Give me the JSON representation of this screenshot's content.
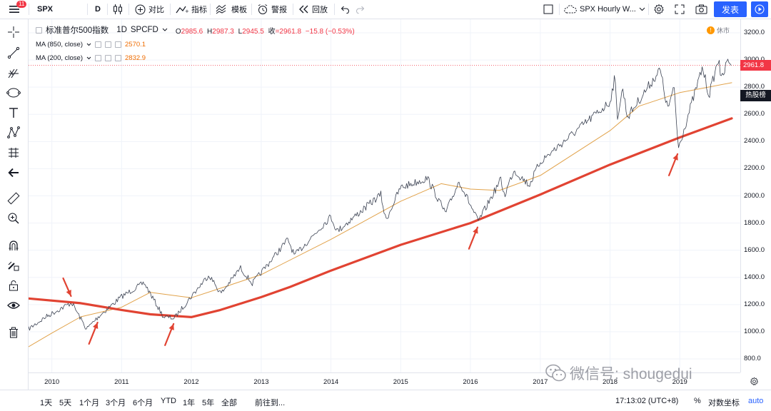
{
  "topbar": {
    "menu_badge": "11",
    "symbol": "SPX",
    "interval": "D",
    "compare_label": "对比",
    "indicators_label": "指标",
    "templates_label": "模板",
    "alert_label": "警报",
    "replay_label": "回放",
    "layout_name": "SPX Hourly W...",
    "publish_label": "发表"
  },
  "legend": {
    "title": "标准普尔500指数",
    "interval": "1D",
    "exchange": "SPCFD",
    "open_key": "O",
    "open": "2985.6",
    "high_key": "H",
    "high": "2987.3",
    "low_key": "L",
    "low": "2945.5",
    "close_key": "收",
    "close": "=2961.8",
    "change": "−15.8 (−0.53%)",
    "ma1_label": "MA (850, close)",
    "ma1_value": "2570.1",
    "ma2_label": "MA (200, close)",
    "ma2_value": "2832.9",
    "closed_icon": "!",
    "closed_text": "休市"
  },
  "price_axis": {
    "ticks": [
      "3200.0",
      "3000.0",
      "2800.0",
      "2600.0",
      "2400.0",
      "2200.0",
      "2000.0",
      "1800.0",
      "1600.0",
      "1400.0",
      "1200.0",
      "1000.0",
      "800.0"
    ],
    "last_price": "2961.8",
    "hot_label": "热股榜"
  },
  "time_axis": {
    "ticks": [
      "2010",
      "2011",
      "2012",
      "2013",
      "2014",
      "2015",
      "2016",
      "2017",
      "2018",
      "2019"
    ]
  },
  "bottombar": {
    "ranges": [
      "1天",
      "5天",
      "1个月",
      "3个月",
      "6个月",
      "YTD",
      "1年",
      "5年",
      "全部"
    ],
    "goto_label": "前往到...",
    "clock": "17:13:02 (UTC+8)",
    "percent_label": "%",
    "log_label": "对数坐标",
    "auto_label": "auto"
  },
  "watermark": {
    "text": "微信号: shougedui"
  },
  "colors": {
    "price_line": "#3c4353",
    "ma_850": "#e14332",
    "ma_200": "#e1a24a",
    "arrow": "#e14332",
    "accent": "#2962ff",
    "last_price": "#f23645"
  },
  "chart_data": {
    "type": "line",
    "ylim": [
      800,
      3200
    ],
    "x_range": [
      "2009-09-01",
      "2019-09-30"
    ],
    "series": [
      {
        "name": "SPX",
        "points": [
          [
            "2009-09-01",
            1020
          ],
          [
            "2009-12-01",
            1110
          ],
          [
            "2010-04-15",
            1215
          ],
          [
            "2010-07-01",
            1020
          ],
          [
            "2010-09-01",
            1110
          ],
          [
            "2010-12-31",
            1258
          ],
          [
            "2011-04-29",
            1360
          ],
          [
            "2011-08-08",
            1110
          ],
          [
            "2011-10-04",
            1100
          ],
          [
            "2011-12-31",
            1258
          ],
          [
            "2012-04-02",
            1420
          ],
          [
            "2012-06-04",
            1280
          ],
          [
            "2012-09-14",
            1470
          ],
          [
            "2012-11-15",
            1355
          ],
          [
            "2013-05-21",
            1680
          ],
          [
            "2013-06-24",
            1560
          ],
          [
            "2013-12-31",
            1848
          ],
          [
            "2014-02-03",
            1740
          ],
          [
            "2014-09-19",
            2010
          ],
          [
            "2014-10-15",
            1820
          ],
          [
            "2014-12-31",
            2060
          ],
          [
            "2015-05-21",
            2130
          ],
          [
            "2015-08-24",
            1870
          ],
          [
            "2015-11-03",
            2110
          ],
          [
            "2016-02-11",
            1810
          ],
          [
            "2016-06-08",
            2120
          ],
          [
            "2016-06-27",
            2000
          ],
          [
            "2016-08-15",
            2190
          ],
          [
            "2016-11-04",
            2080
          ],
          [
            "2016-12-31",
            2250
          ],
          [
            "2017-12-31",
            2690
          ],
          [
            "2018-01-26",
            2870
          ],
          [
            "2018-02-08",
            2580
          ],
          [
            "2018-03-09",
            2790
          ],
          [
            "2018-04-02",
            2580
          ],
          [
            "2018-09-20",
            2930
          ],
          [
            "2018-10-29",
            2640
          ],
          [
            "2018-12-03",
            2790
          ],
          [
            "2018-12-24",
            2350
          ],
          [
            "2019-04-30",
            2945
          ],
          [
            "2019-06-03",
            2740
          ],
          [
            "2019-07-26",
            3025
          ],
          [
            "2019-08-05",
            2840
          ],
          [
            "2019-09-12",
            3010
          ],
          [
            "2019-09-30",
            2961.8
          ]
        ]
      },
      {
        "name": "MA (850, close)",
        "points": [
          [
            "2009-09-01",
            1245
          ],
          [
            "2010-06-01",
            1210
          ],
          [
            "2011-01-01",
            1160
          ],
          [
            "2011-06-01",
            1128
          ],
          [
            "2012-01-01",
            1108
          ],
          [
            "2012-06-01",
            1160
          ],
          [
            "2013-01-01",
            1255
          ],
          [
            "2013-06-01",
            1330
          ],
          [
            "2014-01-01",
            1450
          ],
          [
            "2015-01-01",
            1640
          ],
          [
            "2016-01-01",
            1800
          ],
          [
            "2017-01-01",
            2010
          ],
          [
            "2018-01-01",
            2230
          ],
          [
            "2019-01-01",
            2430
          ],
          [
            "2019-09-30",
            2570.1
          ]
        ]
      },
      {
        "name": "MA (200, close)",
        "points": [
          [
            "2009-09-01",
            890
          ],
          [
            "2010-01-01",
            990
          ],
          [
            "2010-06-01",
            1110
          ],
          [
            "2011-01-01",
            1180
          ],
          [
            "2011-06-01",
            1290
          ],
          [
            "2012-01-01",
            1250
          ],
          [
            "2012-06-01",
            1320
          ],
          [
            "2013-01-01",
            1420
          ],
          [
            "2014-01-01",
            1680
          ],
          [
            "2015-01-01",
            1960
          ],
          [
            "2015-08-01",
            2090
          ],
          [
            "2016-01-01",
            2050
          ],
          [
            "2016-06-01",
            2040
          ],
          [
            "2017-01-01",
            2150
          ],
          [
            "2018-01-01",
            2480
          ],
          [
            "2018-06-01",
            2660
          ],
          [
            "2019-01-01",
            2760
          ],
          [
            "2019-09-30",
            2832.9
          ]
        ]
      }
    ],
    "annotations": [
      {
        "type": "arrow",
        "date": "2010-04-15",
        "price": 1215,
        "direction": "down"
      },
      {
        "type": "arrow",
        "date": "2010-09-01",
        "price": 1110,
        "direction": "up"
      },
      {
        "type": "arrow",
        "date": "2011-10-04",
        "price": 1100,
        "direction": "up"
      },
      {
        "type": "arrow",
        "date": "2016-02-11",
        "price": 1810,
        "direction": "up"
      },
      {
        "type": "arrow",
        "date": "2018-12-24",
        "price": 2350,
        "direction": "up"
      }
    ]
  }
}
